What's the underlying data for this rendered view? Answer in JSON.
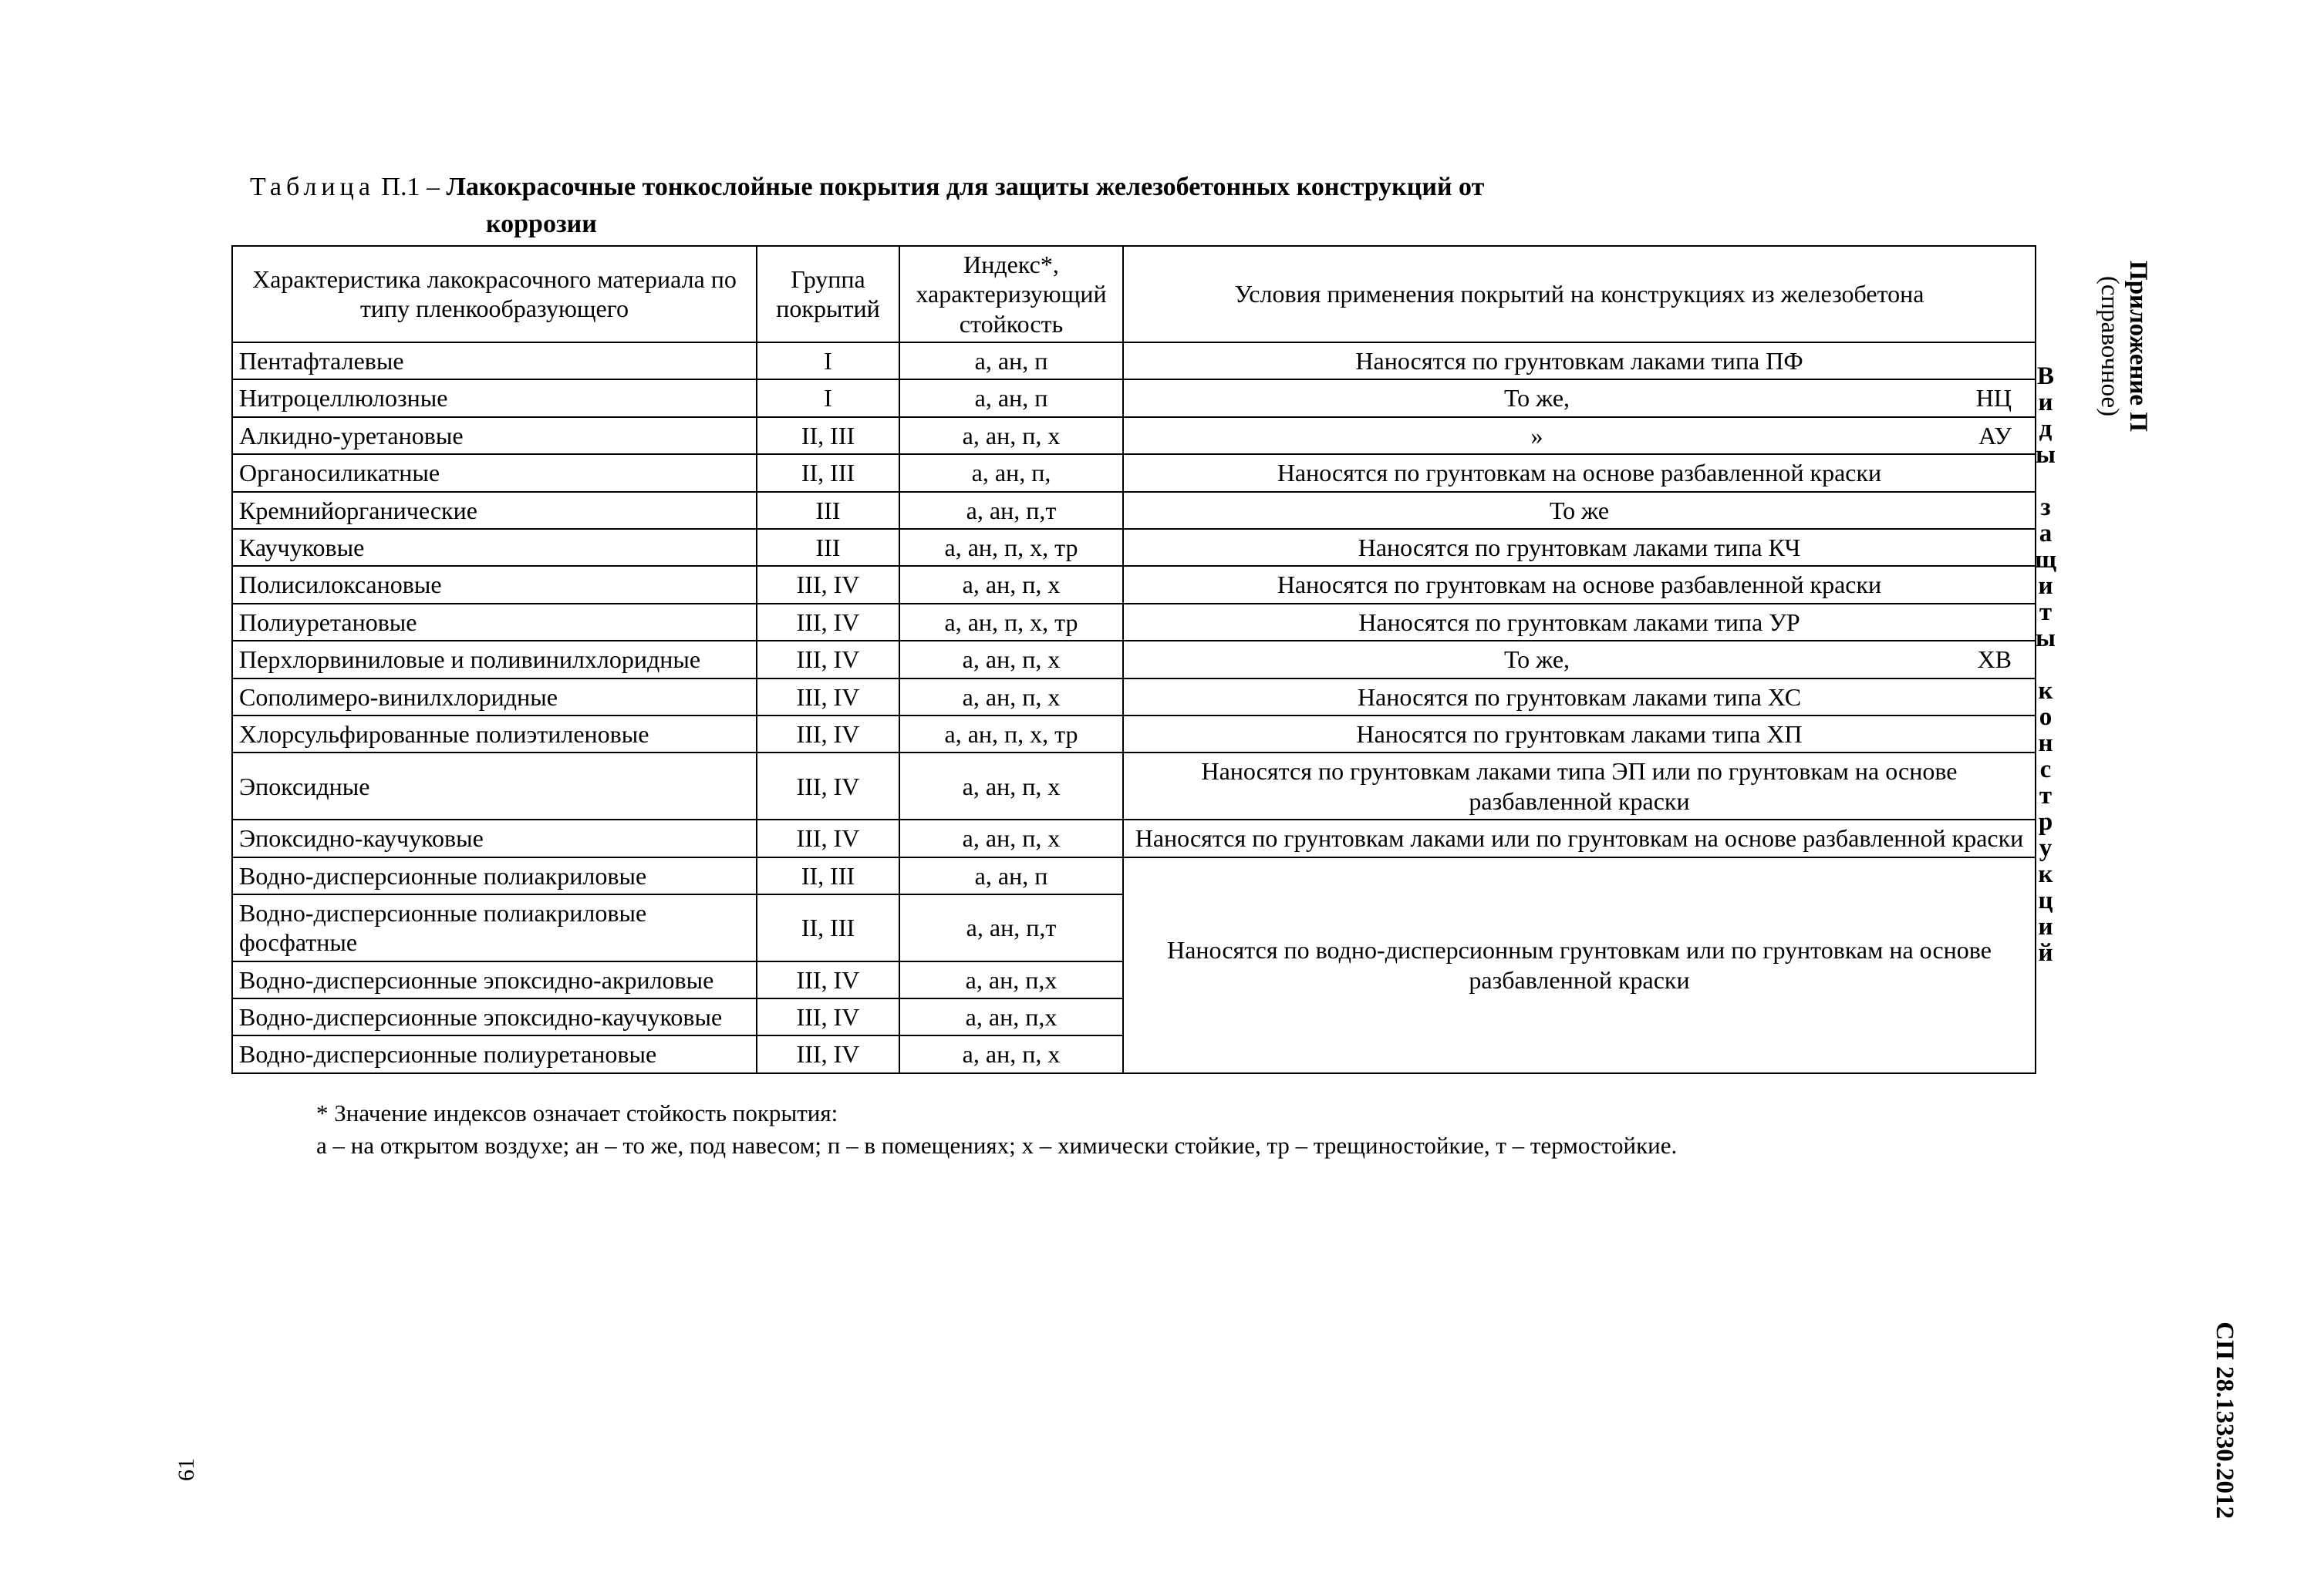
{
  "caption": {
    "prefix": "Таблица",
    "number": "П.1",
    "dash": "–",
    "title_line1": "Лакокрасочные тонкослойные покрытия для защиты железобетонных конструкций от",
    "title_line2": "коррозии"
  },
  "columns": {
    "c1": "Характеристика лакокрасочного материала по типу пленкообразующего",
    "c2": "Группа покрытий",
    "c3": "Индекс*, характеризующий стойкость",
    "c4": "Условия применения покрытий на конструкциях из железобетона"
  },
  "rows": [
    {
      "material": "Пентафталевые",
      "group": "I",
      "index": "а, ан, п",
      "cond": "Наносятся по грунтовкам лаками типа ПФ"
    },
    {
      "material": "Нитроцеллюлозные",
      "group": "I",
      "index": "а, ан, п",
      "cond_main": "То же,",
      "cond_suffix": "НЦ"
    },
    {
      "material": "Алкидно-уретановые",
      "group": "II, III",
      "index": "а, ан, п, х",
      "cond_main": "»",
      "cond_suffix": "АУ"
    },
    {
      "material": "Органосиликатные",
      "group": "II, III",
      "index": "а, ан, п,",
      "cond": "Наносятся по грунтовкам на основе разбавленной краски"
    },
    {
      "material": "Кремнийорганические",
      "group": "III",
      "index": "а, ан, п,т",
      "cond": "То же"
    },
    {
      "material": "Каучуковые",
      "group": "III",
      "index": "а, ан, п, х, тр",
      "cond": "Наносятся по грунтовкам лаками типа КЧ"
    },
    {
      "material": "Полисилоксановые",
      "group": "III, IV",
      "index": "а, ан, п, х",
      "cond": "Наносятся по грунтовкам на основе разбавленной краски"
    },
    {
      "material": "Полиуретановые",
      "group": "III, IV",
      "index": "а, ан, п, х, тр",
      "cond": "Наносятся по грунтовкам лаками типа УР"
    },
    {
      "material": "Перхлорвиниловые и поливинилхлоридные",
      "group": "III, IV",
      "index": "а, ан, п, х",
      "cond_main": "То же,",
      "cond_suffix": "ХВ"
    },
    {
      "material": "Сополимеро-винилхлоридные",
      "group": "III, IV",
      "index": "а, ан, п, х",
      "cond": "Наносятся по грунтовкам лаками типа ХС"
    },
    {
      "material": "Хлорсульфированные полиэтиленовые",
      "group": "III, IV",
      "index": "а, ан, п, х, тр",
      "cond": "Наносятся по грунтовкам лаками типа ХП"
    },
    {
      "material": "Эпоксидные",
      "group": "III, IV",
      "index": "а, ан, п, х",
      "cond": "Наносятся по грунтовкам лаками типа ЭП или по грунтовкам на основе разбавленной краски"
    },
    {
      "material": "Эпоксидно-каучуковые",
      "group": "III, IV",
      "index": "а, ан, п, х",
      "cond": "Наносятся по грунтовкам лаками или по грунтовкам на основе разбавленной краски"
    },
    {
      "material": "Водно-дисперсионные полиакриловые",
      "group": "II, III",
      "index": "а, ан, п",
      "merged_start": true,
      "cond": "Наносятся по водно-дисперсионным грунтовкам или по грунтовкам на основе разбавленной краски"
    },
    {
      "material": "Водно-дисперсионные полиакриловые фосфатные",
      "group": "II, III",
      "index": "а, ан, п,т"
    },
    {
      "material": "Водно-дисперсионные эпоксидно-акриловые",
      "group": "III, IV",
      "index": "а, ан, п,х"
    },
    {
      "material": "Водно-дисперсионные эпоксидно-каучуковые",
      "group": "III, IV",
      "index": "а, ан, п,х"
    },
    {
      "material": "Водно-дисперсионные полиуретановые",
      "group": "III, IV",
      "index": "а, ан, п, х"
    }
  ],
  "footnote": {
    "line1": "* Значение индексов означает стойкость покрытия:",
    "line2": "а – на открытом воздухе; ан – то же, под навесом; п – в помещениях; х – химически стойкие, тр – трещиностойкие, т – термостойкие."
  },
  "side": {
    "types": "Виды защиты конструкций",
    "appendix_title": "Приложение П",
    "appendix_sub": "(справочное)",
    "doc_code": "СП 28.13330.2012"
  },
  "page_number": "61"
}
